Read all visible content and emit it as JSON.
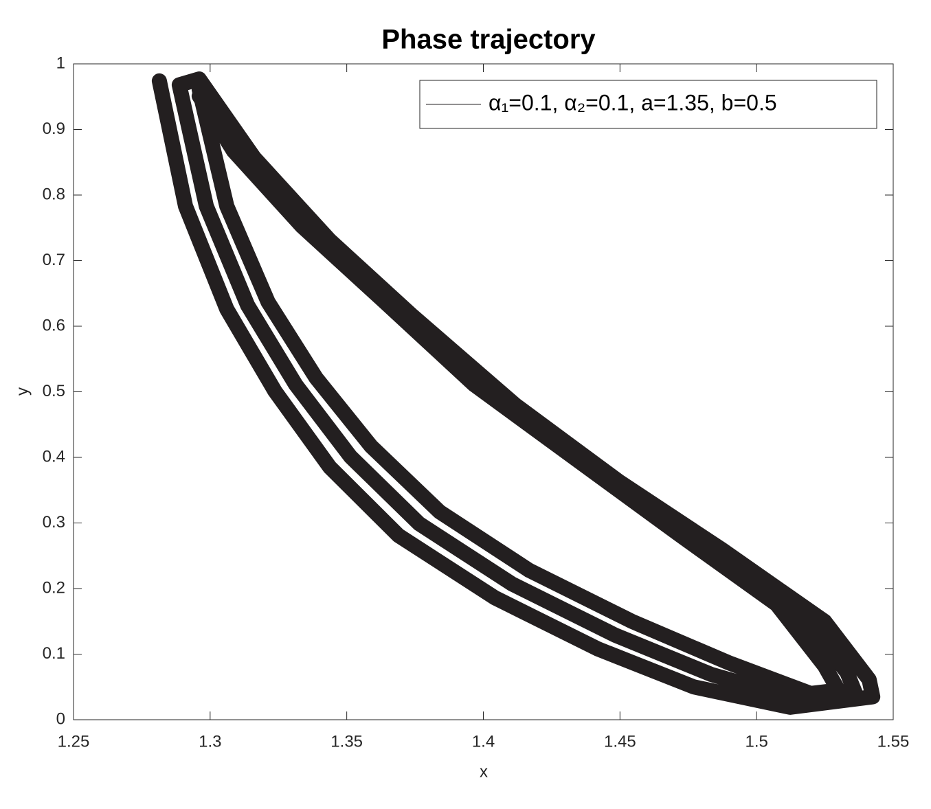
{
  "chart_data": {
    "type": "line",
    "title": "Phase trajectory",
    "xlabel": "x",
    "ylabel": "y",
    "x": [
      1.2814,
      1.291,
      1.3061,
      1.3237,
      1.3438,
      1.3689,
      1.4042,
      1.4419,
      1.4771,
      1.5123,
      1.5425,
      1.5412,
      1.5249,
      1.4871,
      1.4494,
      1.4117,
      1.374,
      1.3438,
      1.3161,
      1.296,
      1.2887,
      1.2986,
      1.3137,
      1.3313,
      1.3514,
      1.3765,
      1.4105,
      1.4482,
      1.4834,
      1.5161,
      1.5362,
      1.5331,
      1.5161,
      1.4796,
      1.4419,
      1.4042,
      1.369,
      1.3388,
      1.3124,
      1.296,
      1.296,
      1.3061,
      1.3212,
      1.3388,
      1.3589,
      1.384,
      1.4167,
      1.4544,
      1.4897,
      1.5198,
      1.5299,
      1.5249,
      1.5073,
      1.4721,
      1.4343,
      1.3966,
      1.3639,
      1.3337,
      1.3086,
      1.296
    ],
    "series": [
      {
        "name": "α₁=0.1, α₂=0.1, a=1.35, b=0.5",
        "color": "#231f20",
        "values": [
          0.974,
          0.783,
          0.626,
          0.501,
          0.385,
          0.281,
          0.186,
          0.108,
          0.05,
          0.019,
          0.035,
          0.061,
          0.15,
          0.26,
          0.364,
          0.48,
          0.616,
          0.731,
          0.857,
          0.977,
          0.968,
          0.783,
          0.632,
          0.511,
          0.401,
          0.299,
          0.207,
          0.129,
          0.069,
          0.03,
          0.04,
          0.072,
          0.163,
          0.271,
          0.38,
          0.496,
          0.627,
          0.742,
          0.862,
          0.964,
          0.961,
          0.783,
          0.637,
          0.521,
          0.417,
          0.317,
          0.228,
          0.15,
          0.087,
          0.04,
          0.045,
          0.082,
          0.176,
          0.281,
          0.396,
          0.511,
          0.637,
          0.752,
          0.867,
          0.951
        ]
      }
    ],
    "xlim": [
      1.25,
      1.55
    ],
    "ylim": [
      0,
      1
    ],
    "xticks": [
      1.25,
      1.3,
      1.35,
      1.4,
      1.45,
      1.5,
      1.55
    ],
    "yticks": [
      0,
      0.1,
      0.2,
      0.3,
      0.4,
      0.5,
      0.6,
      0.7,
      0.8,
      0.9,
      1
    ],
    "legend": "northeast"
  }
}
